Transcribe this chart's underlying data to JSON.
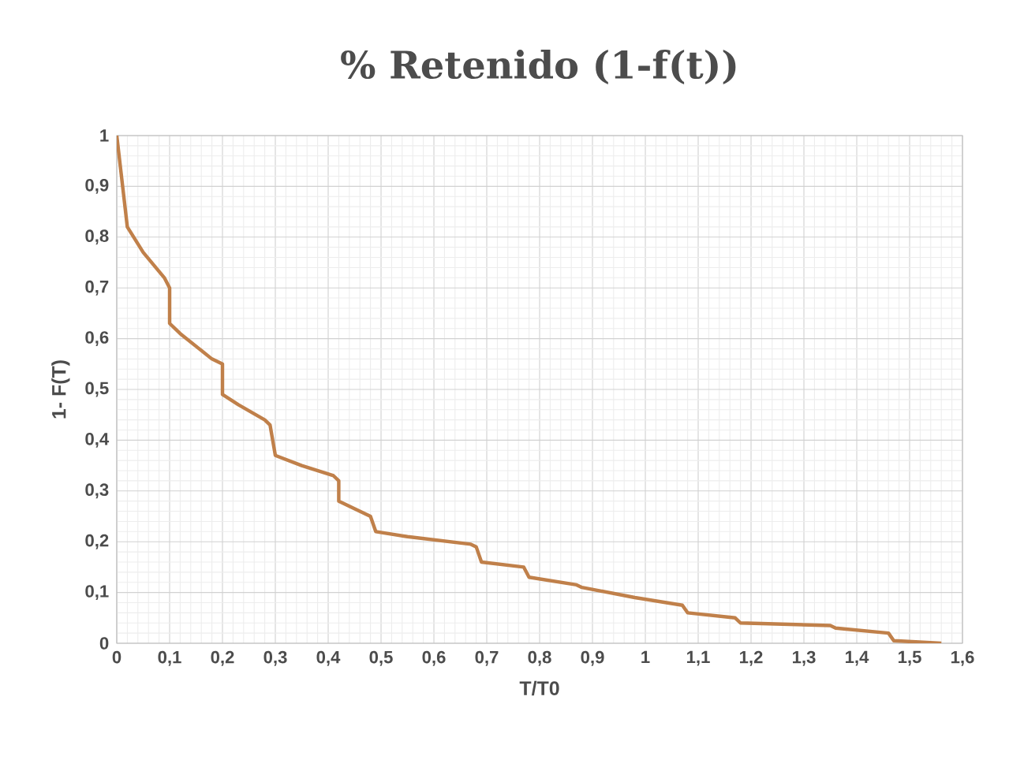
{
  "chart_data": {
    "type": "line",
    "title": "% Retenido (1-f(t))",
    "xlabel": "T/T0",
    "ylabel": "1- F(T)",
    "x": [
      0,
      0.02,
      0.05,
      0.09,
      0.1,
      0.1,
      0.12,
      0.18,
      0.2,
      0.2,
      0.23,
      0.28,
      0.29,
      0.3,
      0.35,
      0.41,
      0.42,
      0.42,
      0.48,
      0.49,
      0.55,
      0.67,
      0.68,
      0.69,
      0.77,
      0.78,
      0.87,
      0.88,
      0.98,
      1.07,
      1.08,
      1.17,
      1.18,
      1.35,
      1.36,
      1.46,
      1.47,
      1.56
    ],
    "series": [
      {
        "color": "#c0804a",
        "values": [
          1,
          0.82,
          0.77,
          0.72,
          0.7,
          0.63,
          0.61,
          0.56,
          0.55,
          0.49,
          0.47,
          0.44,
          0.43,
          0.37,
          0.35,
          0.33,
          0.32,
          0.28,
          0.25,
          0.22,
          0.21,
          0.195,
          0.19,
          0.16,
          0.15,
          0.13,
          0.115,
          0.11,
          0.09,
          0.075,
          0.06,
          0.05,
          0.04,
          0.035,
          0.03,
          0.02,
          0.005,
          0
        ]
      }
    ],
    "xlim": [
      0,
      1.6
    ],
    "ylim": [
      0,
      1
    ],
    "xticks": [
      0,
      {
        "value": 0.1,
        "label": "0,1"
      },
      {
        "value": 0.2,
        "label": "0,2"
      },
      {
        "value": 0.3,
        "label": "0,3"
      },
      {
        "value": 0.4,
        "label": "0,4"
      },
      {
        "value": 0.5,
        "label": "0,5"
      },
      {
        "value": 0.6,
        "label": "0,6"
      },
      {
        "value": 0.7,
        "label": "0,7"
      },
      {
        "value": 0.8,
        "label": "0,8"
      },
      {
        "value": 0.9,
        "label": "0,9"
      },
      1,
      {
        "value": 1.1,
        "label": "1,1"
      },
      {
        "value": 1.2,
        "label": "1,2"
      },
      {
        "value": 1.3,
        "label": "1,3"
      },
      {
        "value": 1.4,
        "label": "1,4"
      },
      {
        "value": 1.5,
        "label": "1,5"
      },
      {
        "value": 1.6,
        "label": "1,6"
      }
    ],
    "yticks": [
      0,
      {
        "value": 0.1,
        "label": "0,1"
      },
      {
        "value": 0.2,
        "label": "0,2"
      },
      {
        "value": 0.3,
        "label": "0,3"
      },
      {
        "value": 0.4,
        "label": "0,4"
      },
      {
        "value": 0.5,
        "label": "0,5"
      },
      {
        "value": 0.6,
        "label": "0,6"
      },
      {
        "value": 0.7,
        "label": "0,7"
      },
      {
        "value": 0.8,
        "label": "0,8"
      },
      {
        "value": 0.9,
        "label": "0,9"
      },
      1
    ],
    "grid": true,
    "marker": "none",
    "line_style": "solid"
  }
}
